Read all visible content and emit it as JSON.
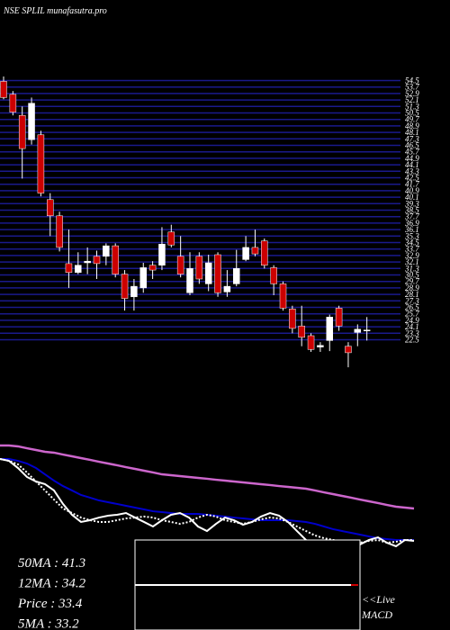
{
  "chart_data": [
    {
      "type": "candlestick",
      "title": "NSE SPLIL munafasutra.pro",
      "ylim": [
        19,
        55
      ],
      "yticks": [
        54.5,
        53.7,
        52.9,
        52.1,
        51.3,
        50.5,
        49.7,
        48.9,
        48.1,
        47.3,
        46.5,
        45.7,
        44.9,
        44.1,
        43.3,
        42.5,
        41.7,
        40.9,
        40.1,
        39.3,
        38.5,
        37.7,
        36.9,
        36.1,
        35.3,
        34.5,
        33.7,
        32.9,
        32.1,
        31.3,
        30.5,
        29.7,
        28.9,
        28.1,
        27.3,
        26.5,
        25.7,
        24.9,
        24.1,
        23.3,
        22.5
      ],
      "grid": true,
      "grid_color": "#1a1a8c",
      "up_color": "#ffffff",
      "down_color": "#cc0000",
      "open": [
        54.4,
        52.8,
        50.2,
        47.2,
        47.8,
        39.8,
        37.8,
        31.9,
        30.8,
        32.0,
        32.8,
        32.8,
        34.1,
        30.6,
        27.8,
        28.9,
        31.7,
        31.7,
        35.8,
        32.8,
        28.3,
        32.8,
        29.4,
        33.0,
        28.4,
        29.4,
        32.4,
        33.9,
        34.7,
        31.4,
        29.4,
        26.3,
        24.2,
        23.0,
        21.6,
        22.4,
        26.4,
        21.7,
        23.4,
        23.6
      ],
      "high": [
        55.0,
        53.2,
        51.3,
        52.4,
        48.3,
        40.6,
        38.3,
        36.1,
        33.3,
        33.9,
        33.5,
        34.4,
        34.4,
        31.1,
        30.0,
        32.0,
        32.2,
        36.4,
        36.7,
        35.3,
        33.3,
        33.3,
        33.0,
        33.3,
        31.1,
        33.6,
        35.3,
        36.1,
        35.0,
        31.7,
        29.7,
        26.7,
        26.7,
        23.3,
        22.2,
        25.6,
        26.7,
        22.2,
        24.4,
        25.3
      ],
      "low": [
        52.2,
        50.2,
        42.4,
        46.6,
        40.2,
        35.3,
        33.4,
        28.9,
        30.6,
        30.6,
        30.0,
        31.7,
        30.2,
        26.1,
        26.1,
        28.3,
        30.0,
        31.1,
        33.9,
        30.2,
        28.0,
        29.4,
        28.5,
        27.8,
        27.8,
        29.1,
        32.2,
        32.8,
        31.3,
        28.0,
        26.1,
        23.3,
        21.7,
        21.0,
        21.0,
        21.1,
        23.6,
        19.1,
        21.7,
        22.4
      ],
      "close": [
        52.4,
        50.6,
        46.1,
        51.7,
        40.6,
        37.8,
        33.9,
        30.8,
        31.7,
        32.2,
        31.9,
        34.1,
        30.6,
        27.6,
        29.1,
        31.4,
        31.1,
        34.3,
        34.2,
        30.6,
        31.3,
        30.0,
        32.0,
        28.3,
        29.1,
        31.3,
        33.9,
        33.1,
        31.7,
        29.4,
        26.4,
        23.9,
        22.8,
        21.3,
        21.8,
        25.3,
        24.2,
        20.9,
        23.8,
        23.7
      ]
    },
    {
      "type": "line",
      "ylim": [
        0,
        100
      ],
      "annotations": [
        "50MA : 41.3",
        "12MA : 34.2",
        "Price   : 33.4",
        "5MA : 33.2"
      ],
      "series": [
        {
          "name": "50MA",
          "color": "#cc66cc",
          "style": "solid",
          "values": [
            89.3,
            89.3,
            88.6,
            87.1,
            85.7,
            84.3,
            83.6,
            82.1,
            80.7,
            79.3,
            77.9,
            76.4,
            75,
            73.6,
            72.1,
            70.7,
            69.3,
            67.9,
            66.4,
            65.7,
            65,
            64.3,
            63.6,
            62.9,
            62.1,
            61.4,
            60.7,
            60,
            59.3,
            58.6,
            57.9,
            57.1,
            56.4,
            55.7,
            55,
            53.6,
            52.1,
            50.7,
            49.3,
            47.9,
            46.4,
            45,
            43.6,
            42.1,
            40.7,
            40,
            39.3
          ]
        },
        {
          "name": "12MA",
          "color": "#0000cc",
          "style": "solid",
          "values": [
            78.6,
            78.6,
            77.1,
            75,
            71.4,
            66.4,
            61.4,
            57.1,
            53.6,
            50,
            47.9,
            45.7,
            44.3,
            42.9,
            41.4,
            40,
            38.6,
            37.1,
            36.4,
            35.7,
            35,
            35,
            35,
            34.3,
            33.6,
            32.9,
            32.1,
            31.4,
            30.7,
            30,
            30,
            30,
            30,
            29.3,
            28.6,
            27.1,
            25,
            22.9,
            21.4,
            20,
            18.6,
            17.1,
            15.7,
            15,
            14.3,
            14.3,
            14.3
          ]
        },
        {
          "name": "5MA",
          "color": "#ffffff",
          "style": "dashed",
          "values": [
            78.6,
            77.1,
            74.3,
            67.9,
            60.7,
            53.6,
            46.4,
            39.3,
            35.7,
            32.1,
            30,
            28.6,
            28.6,
            30,
            31.4,
            32.1,
            32.9,
            32.1,
            30,
            28.6,
            27.1,
            28.6,
            32.1,
            34.3,
            32.9,
            30,
            28.6,
            27.1,
            28.6,
            30.7,
            32.1,
            31.4,
            28.6,
            25,
            21.4,
            17.9,
            15.7,
            14.3,
            12.9,
            10.7,
            12.1,
            13.6,
            14.3,
            12.1,
            12.9,
            14.3,
            14.3
          ]
        },
        {
          "name": "Price",
          "color": "#ffffff",
          "style": "solid",
          "values": [
            78.6,
            77.1,
            71.4,
            64.3,
            60.7,
            58.6,
            53.6,
            42.9,
            34.3,
            28.6,
            30,
            32.1,
            33.6,
            34.3,
            35.7,
            32.1,
            28.6,
            25,
            30,
            34.3,
            35.7,
            32.1,
            25,
            21.4,
            27.1,
            32.1,
            30,
            26.4,
            28.6,
            32.9,
            35.7,
            33.6,
            28.6,
            21.4,
            14.3,
            8.6,
            5.7,
            7.1,
            3.6,
            5.7,
            10.7,
            14.3,
            16.4,
            12.1,
            9.3,
            14.3,
            13.6
          ]
        }
      ]
    },
    {
      "type": "macd",
      "annotations": [
        "<<Live",
        "MACD"
      ]
    }
  ]
}
